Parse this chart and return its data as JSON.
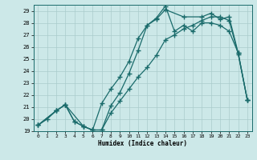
{
  "xlabel": "Humidex (Indice chaleur)",
  "background_color": "#cce8e8",
  "grid_color": "#aacccc",
  "line_color": "#1a6b6b",
  "xlim_min": -0.5,
  "xlim_max": 23.5,
  "ylim_min": 19,
  "ylim_max": 29.5,
  "yticks": [
    19,
    20,
    21,
    22,
    23,
    24,
    25,
    26,
    27,
    28,
    29
  ],
  "xticks": [
    0,
    1,
    2,
    3,
    4,
    5,
    6,
    7,
    8,
    9,
    10,
    11,
    12,
    13,
    14,
    15,
    16,
    17,
    18,
    19,
    20,
    21,
    22,
    23
  ],
  "line1_x": [
    0,
    1,
    2,
    3,
    4,
    5,
    6,
    7,
    8,
    9,
    10,
    11,
    12,
    13,
    14,
    15,
    16,
    17,
    18,
    19,
    20,
    21,
    22,
    23
  ],
  "line1_y": [
    19.5,
    20.0,
    20.7,
    21.2,
    19.8,
    19.4,
    19.1,
    19.1,
    20.5,
    21.5,
    22.5,
    23.5,
    24.3,
    25.3,
    26.6,
    27.0,
    27.5,
    27.8,
    28.2,
    28.5,
    28.5,
    28.2,
    25.4,
    21.6
  ],
  "line2_x": [
    0,
    2,
    3,
    4,
    5,
    6,
    7,
    8,
    9,
    10,
    11,
    12,
    13,
    14,
    15,
    16,
    17,
    18,
    19,
    20,
    21,
    22,
    23
  ],
  "line2_y": [
    19.5,
    20.7,
    21.2,
    19.8,
    19.4,
    19.1,
    21.3,
    22.5,
    23.5,
    24.8,
    26.7,
    27.8,
    28.4,
    29.4,
    27.3,
    27.8,
    27.3,
    28.0,
    28.0,
    27.8,
    27.3,
    25.5,
    21.6
  ],
  "line3_x": [
    0,
    2,
    3,
    5,
    6,
    7,
    8,
    9,
    10,
    11,
    12,
    13,
    14,
    16,
    18,
    19,
    20,
    21,
    22,
    23
  ],
  "line3_y": [
    19.5,
    20.7,
    21.2,
    19.4,
    19.1,
    19.1,
    21.1,
    22.2,
    23.8,
    25.7,
    27.8,
    28.3,
    29.1,
    28.5,
    28.5,
    28.8,
    28.3,
    28.5,
    25.5,
    21.6
  ]
}
